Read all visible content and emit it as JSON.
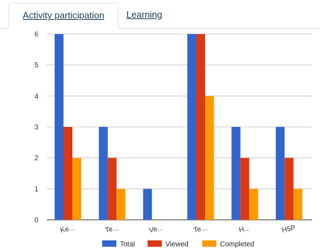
{
  "tabs": [
    {
      "label": "Activity participation",
      "active": true
    },
    {
      "label": "Learning",
      "active": false
    }
  ],
  "chart_data": {
    "type": "bar",
    "categories": [
      "Ke...",
      "Te...",
      "Ve...",
      "Te...",
      "H...",
      "H5P"
    ],
    "series": [
      {
        "name": "Total",
        "color": "#3366cc",
        "values": [
          6,
          3,
          1,
          6,
          3,
          3
        ]
      },
      {
        "name": "Viewed",
        "color": "#dc3912",
        "values": [
          3,
          2,
          0,
          6,
          2,
          2
        ]
      },
      {
        "name": "Completed",
        "color": "#ff9900",
        "values": [
          2,
          1,
          0,
          4,
          1,
          1
        ]
      }
    ],
    "yticks": [
      0,
      1,
      2,
      3,
      4,
      5,
      6
    ],
    "ylim": [
      0,
      6
    ],
    "grid": true,
    "legend": "bottom"
  }
}
